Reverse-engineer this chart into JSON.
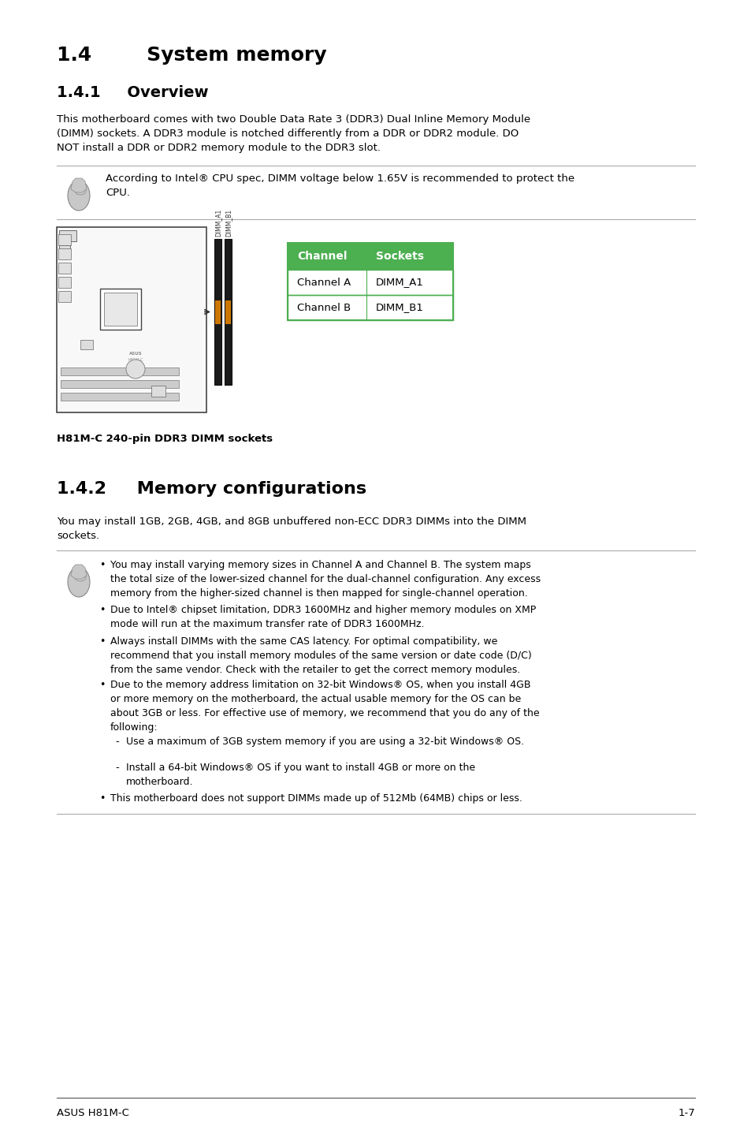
{
  "title_14": "1.4        System memory",
  "title_141": "1.4.1     Overview",
  "title_142": "1.4.2     Memory configurations",
  "body_141": "This motherboard comes with two Double Data Rate 3 (DDR3) Dual Inline Memory Module\n(DIMM) sockets. A DDR3 module is notched differently from a DDR or DDR2 module. DO\nNOT install a DDR or DDR2 memory module to the DDR3 slot.",
  "note_141": "According to Intel® CPU spec, DIMM voltage below 1.65V is recommended to protect the\nCPU.",
  "body_142": "You may install 1GB, 2GB, 4GB, and 8GB unbuffered non-ECC DDR3 DIMMs into the DIMM\nsockets.",
  "table_header": [
    "Channel",
    "Sockets"
  ],
  "table_rows": [
    [
      "Channel A",
      "DIMM_A1"
    ],
    [
      "Channel B",
      "DIMM_B1"
    ]
  ],
  "table_header_bg": "#4caf50",
  "table_header_color": "#ffffff",
  "table_border_color": "#4caf50",
  "caption": "H81M-C 240-pin DDR3 DIMM sockets",
  "footer_left": "ASUS H81M-C",
  "footer_right": "1-7",
  "bullet_points": [
    "You may install varying memory sizes in Channel A and Channel B. The system maps\nthe total size of the lower-sized channel for the dual-channel configuration. Any excess\nmemory from the higher-sized channel is then mapped for single-channel operation.",
    "Due to Intel® chipset limitation, DDR3 1600MHz and higher memory modules on XMP\nmode will run at the maximum transfer rate of DDR3 1600MHz.",
    "Always install DIMMs with the same CAS latency. For optimal compatibility, we\nrecommend that you install memory modules of the same version or date code (D/C)\nfrom the same vendor. Check with the retailer to get the correct memory modules.",
    "Due to the memory address limitation on 32-bit Windows® OS, when you install 4GB\nor more memory on the motherboard, the actual usable memory for the OS can be\nabout 3GB or less. For effective use of memory, we recommend that you do any of the\nfollowing:"
  ],
  "sub_bullets": [
    "Use a maximum of 3GB system memory if you are using a 32-bit Windows® OS.",
    "Install a 64-bit Windows® OS if you want to install 4GB or more on the\nmotherboard."
  ],
  "last_bullet": "This motherboard does not support DIMMs made up of 512Mb (64MB) chips or less.",
  "bg_color": "#ffffff",
  "text_color": "#000000",
  "line_color": "#aaaaaa",
  "dimm_label_a": "DIMM_A1",
  "dimm_label_b": "DIMM_B1"
}
